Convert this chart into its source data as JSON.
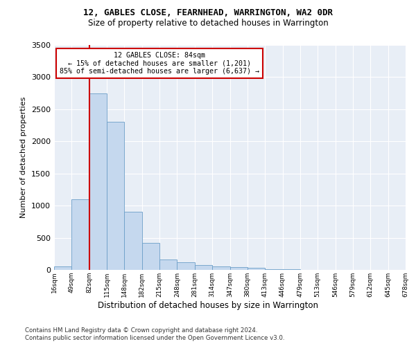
{
  "title1": "12, GABLES CLOSE, FEARNHEAD, WARRINGTON, WA2 0DR",
  "title2": "Size of property relative to detached houses in Warrington",
  "xlabel": "Distribution of detached houses by size in Warrington",
  "ylabel": "Number of detached properties",
  "footer1": "Contains HM Land Registry data © Crown copyright and database right 2024.",
  "footer2": "Contains public sector information licensed under the Open Government Licence v3.0.",
  "annotation_line1": "12 GABLES CLOSE: 84sqm",
  "annotation_line2": "← 15% of detached houses are smaller (1,201)",
  "annotation_line3": "85% of semi-detached houses are larger (6,637) →",
  "bar_values": [
    50,
    1100,
    2750,
    2300,
    900,
    420,
    160,
    115,
    80,
    55,
    45,
    30,
    15,
    8,
    5,
    3,
    2,
    2,
    1,
    1
  ],
  "categories": [
    "16sqm",
    "49sqm",
    "82sqm",
    "115sqm",
    "148sqm",
    "182sqm",
    "215sqm",
    "248sqm",
    "281sqm",
    "314sqm",
    "347sqm",
    "380sqm",
    "413sqm",
    "446sqm",
    "479sqm",
    "513sqm",
    "546sqm",
    "579sqm",
    "612sqm",
    "645sqm",
    "678sqm"
  ],
  "bar_color": "#c5d8ee",
  "bar_edge_color": "#6b9ec8",
  "red_line_color": "#cc0000",
  "annotation_box_edge": "#cc0000",
  "plot_background": "#e8eef6",
  "grid_color": "#ffffff",
  "ylim": [
    0,
    3500
  ],
  "yticks": [
    0,
    500,
    1000,
    1500,
    2000,
    2500,
    3000,
    3500
  ],
  "red_line_bar_index": 2
}
